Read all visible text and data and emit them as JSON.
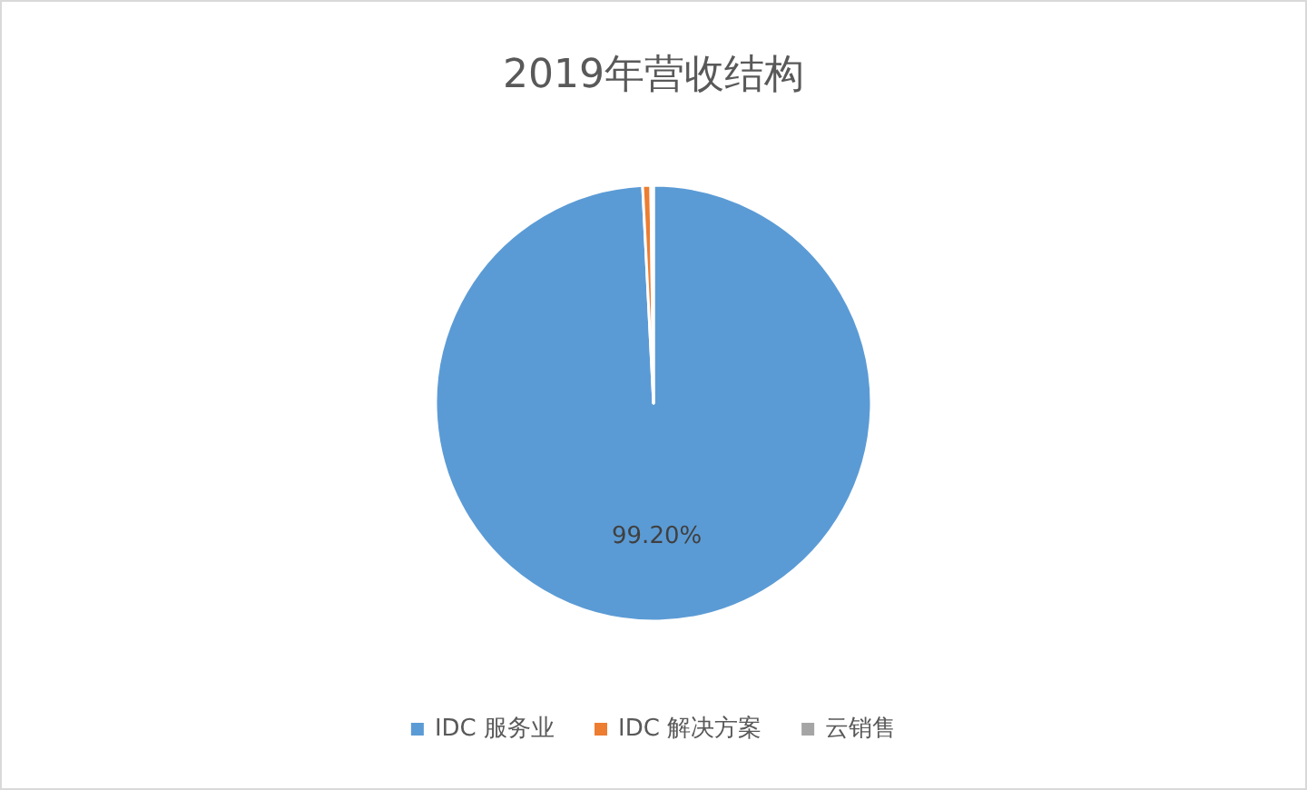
{
  "chart_data": {
    "type": "pie",
    "title": "2019年营收结构",
    "categories": [
      "IDC 服务业",
      "IDC 解决方案",
      "云销售"
    ],
    "values": [
      99.2,
      0.6,
      0.2
    ],
    "colors": [
      "#5b9bd5",
      "#ed7d31",
      "#a5a5a5"
    ],
    "value_labels": [
      "99.20%",
      null,
      null
    ],
    "legend": "bottom"
  }
}
